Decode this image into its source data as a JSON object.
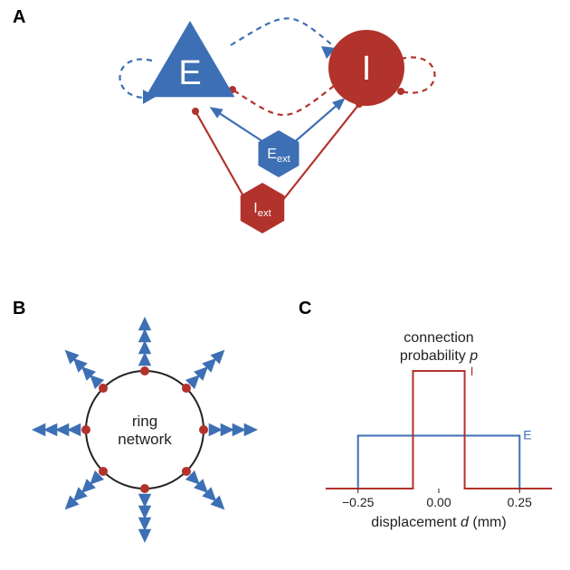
{
  "colors": {
    "e_blue": "#3d6fb4",
    "i_red": "#b2322c",
    "black": "#222222",
    "bg": "#ffffff"
  },
  "fonts": {
    "panel_label_size": 20,
    "node_letter_size": 38,
    "ext_label_size": 16,
    "ring_label_size": 17,
    "axis_title_size": 16,
    "axis_tick_size": 14,
    "legend_label_size": 14
  },
  "panelA": {
    "label": "A",
    "E_node": {
      "letter": "E",
      "shape": "triangle"
    },
    "I_node": {
      "letter": "I",
      "shape": "circle"
    },
    "E_ext": {
      "label": "Eext",
      "shape": "hexagon"
    },
    "I_ext": {
      "label": "Iext",
      "shape": "hexagon"
    },
    "dash_pattern": "6,5",
    "stroke_width": 2.2,
    "dot_radius": 4
  },
  "panelB": {
    "label": "B",
    "center_text1": "ring",
    "center_text2": "network",
    "n_positions": 8,
    "inhib_per_pos": 1,
    "excit_per_pos": 4,
    "ring_radius": 65,
    "inhib_dot_radius": 5,
    "excit_tri_size": 9
  },
  "panelC": {
    "label": "C",
    "title1": "connection",
    "title2": "probability p",
    "xlabel": "displacement d (mm)",
    "x_ticks": [
      -0.25,
      0.0,
      0.25
    ],
    "x_tick_labels": [
      "−0.25",
      "0.00",
      "0.25"
    ],
    "xlim": [
      -0.35,
      0.35
    ],
    "series": {
      "I": {
        "label": "I",
        "half_width": 0.08,
        "height": 1.0,
        "color_key": "i_red"
      },
      "E": {
        "label": "E",
        "half_width": 0.25,
        "height": 0.45,
        "color_key": "e_blue"
      }
    },
    "line_width": 2
  }
}
